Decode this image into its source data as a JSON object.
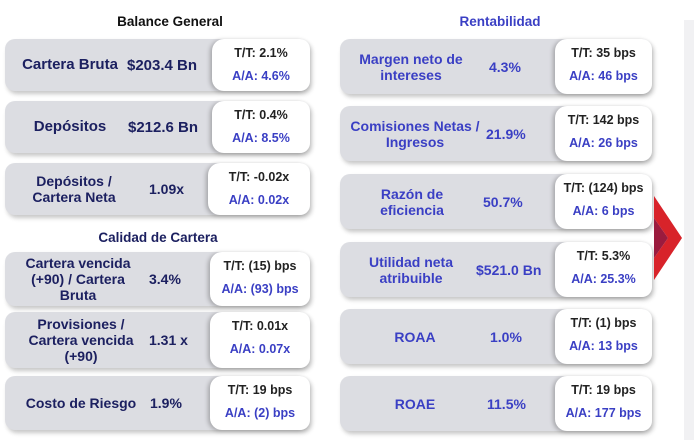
{
  "balance": {
    "title": "Balance General",
    "cards": [
      {
        "label": "Cartera Bruta",
        "value": "$203.4 Bn",
        "tt": "T/T: 2.1%",
        "aa": "A/A: 4.6%"
      },
      {
        "label": "Depósitos",
        "value": "$212.6 Bn",
        "tt": "T/T: 0.4%",
        "aa": "A/A: 8.5%"
      },
      {
        "label": "Depósitos / Cartera Neta",
        "value": "1.09x",
        "tt": "T/T: -0.02x",
        "aa": "A/A: 0.02x"
      }
    ]
  },
  "calidad": {
    "title": "Calidad de Cartera",
    "cards": [
      {
        "label": "Cartera vencida (+90) / Cartera Bruta",
        "value": "3.4%",
        "tt": "T/T: (15) bps",
        "aa": "A/A: (93) bps"
      },
      {
        "label": "Provisiones / Cartera vencida (+90)",
        "value": "1.31 x",
        "tt": "T/T: 0.01x",
        "aa": "A/A: 0.07x"
      },
      {
        "label": "Costo de Riesgo",
        "value": "1.9%",
        "tt": "T/T: 19 bps",
        "aa": "A/A: (2) bps"
      }
    ]
  },
  "rentabilidad": {
    "title": "Rentabilidad",
    "cards": [
      {
        "label": "Margen neto de intereses",
        "value": "4.3%",
        "tt": "T/T: 35 bps",
        "aa": "A/A: 46 bps"
      },
      {
        "label": "Comisiones Netas / Ingresos",
        "value": "21.9%",
        "tt": "T/T: 142 bps",
        "aa": "A/A: 26 bps"
      },
      {
        "label": "Razón de eficiencia",
        "value": "50.7%",
        "tt": "T/T: (124) bps",
        "aa": "A/A: 6 bps"
      },
      {
        "label": "Utilidad neta atribuible",
        "value": "$521.0 Bn",
        "tt": "T/T: 5.3%",
        "aa": "A/A: 25.3%"
      },
      {
        "label": "ROAA",
        "value": "1.0%",
        "tt": "T/T: (1) bps",
        "aa": "A/A: 13 bps"
      },
      {
        "label": "ROAE",
        "value": "11.5%",
        "tt": "T/T: 19 bps",
        "aa": "A/A: 177 bps"
      }
    ]
  },
  "colors": {
    "navy": "#1c2060",
    "blue": "#3a3fc4",
    "card_bg": "#dcdde2",
    "accent_red": "#d8232a"
  }
}
